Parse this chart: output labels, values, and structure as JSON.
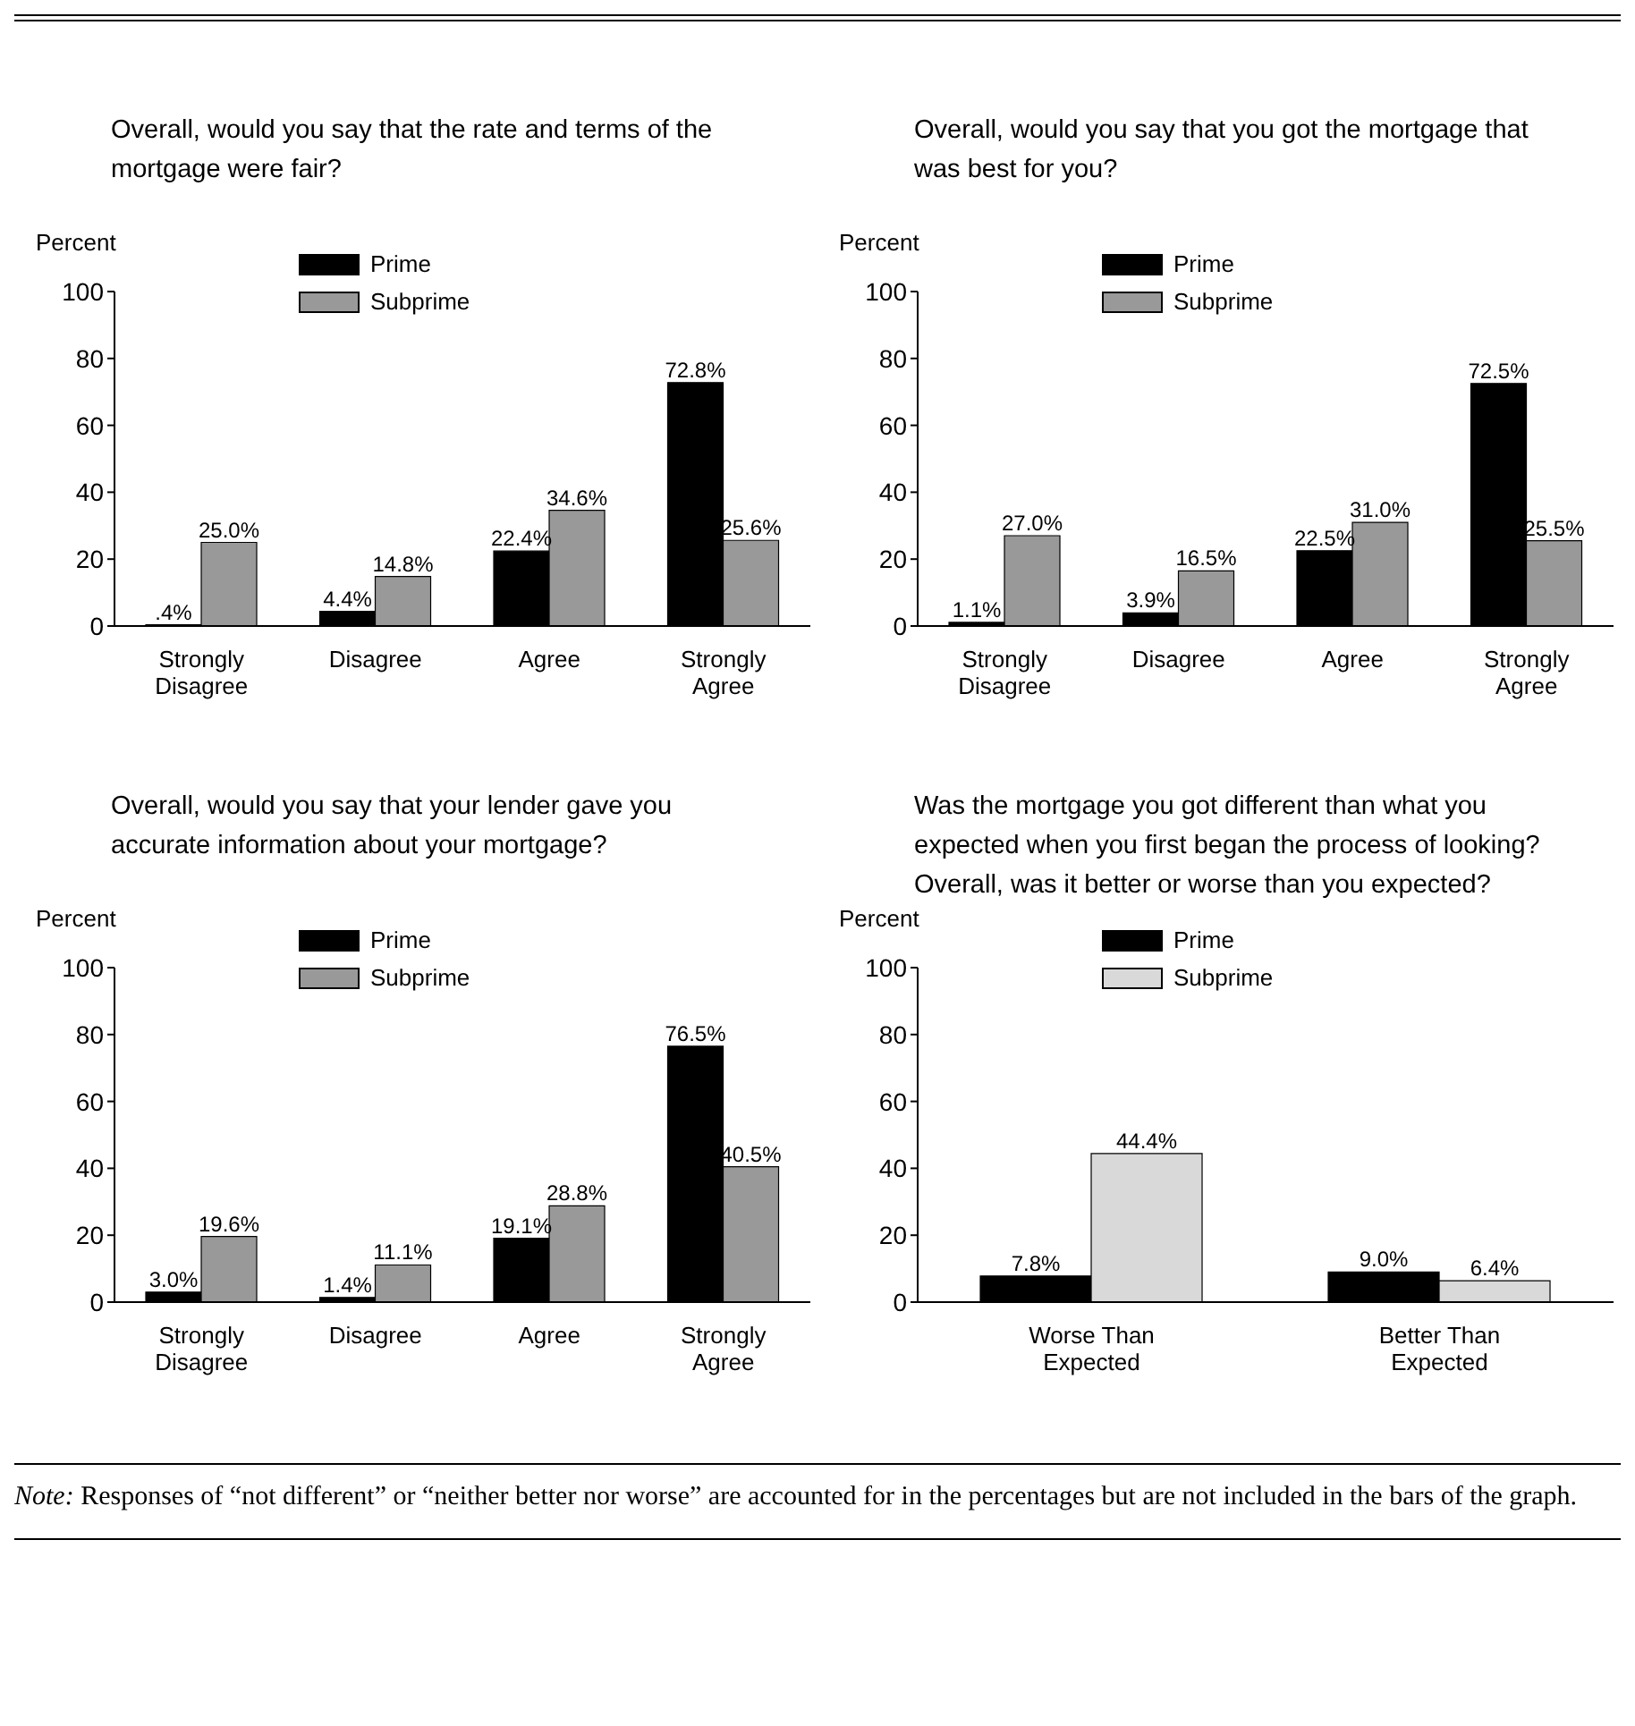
{
  "chart_data": [
    {
      "type": "bar",
      "title": "Overall, would you say that the rate and terms of the mortgage were fair?",
      "ylabel": "Percent",
      "categories": [
        "Strongly Disagree",
        "Disagree",
        "Agree",
        "Strongly Agree"
      ],
      "series": [
        {
          "name": "Prime",
          "color": "#000000",
          "values": [
            0.4,
            4.4,
            22.4,
            72.8
          ],
          "value_labels": [
            ".4%",
            "4.4%",
            "22.4%",
            "72.8%"
          ]
        },
        {
          "name": "Subprime",
          "color": "#999999",
          "values": [
            25.0,
            14.8,
            34.6,
            25.6
          ],
          "value_labels": [
            "25.0%",
            "14.8%",
            "34.6%",
            "25.6%"
          ]
        }
      ],
      "ylim": [
        0,
        100
      ],
      "yticks": [
        0,
        20,
        40,
        60,
        80,
        100
      ],
      "grid": false,
      "legend": "top"
    },
    {
      "type": "bar",
      "title": "Overall, would you say that you got the mortgage that was best for you?",
      "ylabel": "Percent",
      "categories": [
        "Strongly Disagree",
        "Disagree",
        "Agree",
        "Strongly Agree"
      ],
      "series": [
        {
          "name": "Prime",
          "color": "#000000",
          "values": [
            1.1,
            3.9,
            22.5,
            72.5
          ],
          "value_labels": [
            "1.1%",
            "3.9%",
            "22.5%",
            "72.5%"
          ]
        },
        {
          "name": "Subprime",
          "color": "#999999",
          "values": [
            27.0,
            16.5,
            31.0,
            25.5
          ],
          "value_labels": [
            "27.0%",
            "16.5%",
            "31.0%",
            "25.5%"
          ]
        }
      ],
      "ylim": [
        0,
        100
      ],
      "yticks": [
        0,
        20,
        40,
        60,
        80,
        100
      ],
      "grid": false,
      "legend": "top"
    },
    {
      "type": "bar",
      "title": "Overall, would you say that your lender gave you accurate information about your mortgage?",
      "ylabel": "Percent",
      "categories": [
        "Strongly Disagree",
        "Disagree",
        "Agree",
        "Strongly Agree"
      ],
      "series": [
        {
          "name": "Prime",
          "color": "#000000",
          "values": [
            3.0,
            1.4,
            19.1,
            76.5
          ],
          "value_labels": [
            "3.0%",
            "1.4%",
            "19.1%",
            "76.5%"
          ]
        },
        {
          "name": "Subprime",
          "color": "#999999",
          "values": [
            19.6,
            11.1,
            28.8,
            40.5
          ],
          "value_labels": [
            "19.6%",
            "11.1%",
            "28.8%",
            "40.5%"
          ]
        }
      ],
      "ylim": [
        0,
        100
      ],
      "yticks": [
        0,
        20,
        40,
        60,
        80,
        100
      ],
      "grid": false,
      "legend": "top"
    },
    {
      "type": "bar",
      "title": "Was the mortgage you got different than what you expected when you first began the process of looking? Overall, was it better or worse than you expected?",
      "ylabel": "Percent",
      "categories": [
        "Worse Than Expected",
        "Better Than Expected"
      ],
      "series": [
        {
          "name": "Prime",
          "color": "#000000",
          "values": [
            7.8,
            9.0
          ],
          "value_labels": [
            "7.8%",
            "9.0%"
          ]
        },
        {
          "name": "Subprime",
          "color": "#d9d9d9",
          "values": [
            44.4,
            6.4
          ],
          "value_labels": [
            "44.4%",
            "6.4%"
          ]
        }
      ],
      "ylim": [
        0,
        100
      ],
      "yticks": [
        0,
        20,
        40,
        60,
        80,
        100
      ],
      "grid": false,
      "legend": "top",
      "annotations": [
        "Note: Responses of “not different” or “neither better nor worse” are accounted for in the percentages but are not included in the bars of the graph."
      ]
    }
  ]
}
